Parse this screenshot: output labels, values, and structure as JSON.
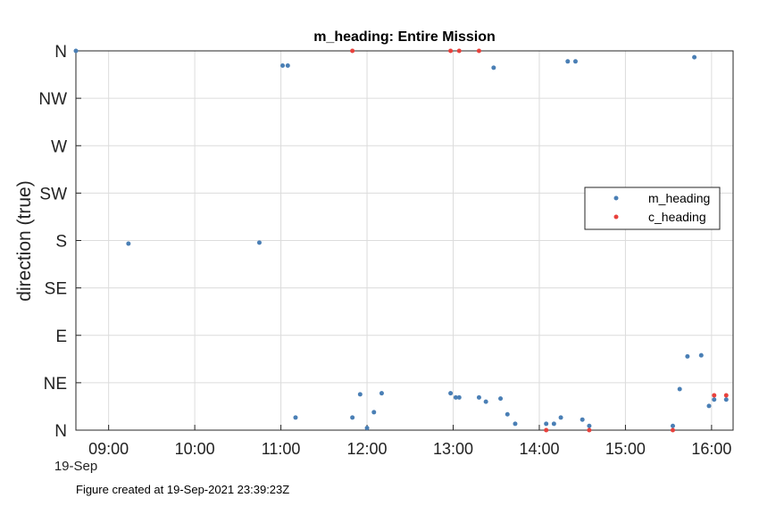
{
  "chart_data": {
    "type": "scatter",
    "title": "m_heading: Entire Mission",
    "xlabel": "",
    "ylabel": "direction (true)",
    "date_label": "19-Sep",
    "x_unit": "hours (19-Sep-2021, HH.MM as decimal hours)",
    "xlim": [
      8.62,
      16.25
    ],
    "ylim": [
      0,
      360
    ],
    "x_ticks": [
      9,
      10,
      11,
      12,
      13,
      14,
      15,
      16
    ],
    "x_tick_labels": [
      "09:00",
      "10:00",
      "11:00",
      "12:00",
      "13:00",
      "14:00",
      "15:00",
      "16:00"
    ],
    "y_ticks": [
      0,
      45,
      90,
      135,
      180,
      225,
      270,
      315,
      360
    ],
    "y_tick_labels": [
      "N",
      "NE",
      "E",
      "SE",
      "S",
      "SW",
      "W",
      "NW",
      "N"
    ],
    "grid": true,
    "legend_position": "right",
    "series": [
      {
        "name": "m_heading",
        "color": "#4a7fb5",
        "points": [
          [
            8.62,
            360
          ],
          [
            9.23,
            177
          ],
          [
            10.75,
            178
          ],
          [
            11.02,
            346
          ],
          [
            11.08,
            346
          ],
          [
            11.17,
            12
          ],
          [
            11.83,
            12
          ],
          [
            11.92,
            34
          ],
          [
            12.0,
            2
          ],
          [
            12.08,
            17
          ],
          [
            12.17,
            35
          ],
          [
            12.97,
            35
          ],
          [
            13.03,
            31
          ],
          [
            13.07,
            31
          ],
          [
            13.3,
            31
          ],
          [
            13.38,
            27
          ],
          [
            13.47,
            344
          ],
          [
            13.55,
            30
          ],
          [
            13.63,
            15
          ],
          [
            13.72,
            6
          ],
          [
            14.08,
            6
          ],
          [
            14.17,
            6
          ],
          [
            14.25,
            12
          ],
          [
            14.33,
            350
          ],
          [
            14.42,
            350
          ],
          [
            14.5,
            10
          ],
          [
            14.58,
            4
          ],
          [
            15.55,
            4
          ],
          [
            15.63,
            39
          ],
          [
            15.72,
            70
          ],
          [
            15.8,
            354
          ],
          [
            15.88,
            71
          ],
          [
            15.97,
            23
          ],
          [
            16.03,
            29
          ],
          [
            16.17,
            29
          ]
        ]
      },
      {
        "name": "c_heading",
        "color": "#e8413c",
        "points": [
          [
            11.83,
            360
          ],
          [
            12.97,
            360
          ],
          [
            13.07,
            360
          ],
          [
            13.3,
            360
          ],
          [
            14.08,
            0
          ],
          [
            14.58,
            0
          ],
          [
            15.55,
            0
          ],
          [
            16.03,
            33
          ],
          [
            16.17,
            33
          ]
        ]
      }
    ],
    "footnote": "Figure created at 19-Sep-2021 23:39:23Z"
  }
}
